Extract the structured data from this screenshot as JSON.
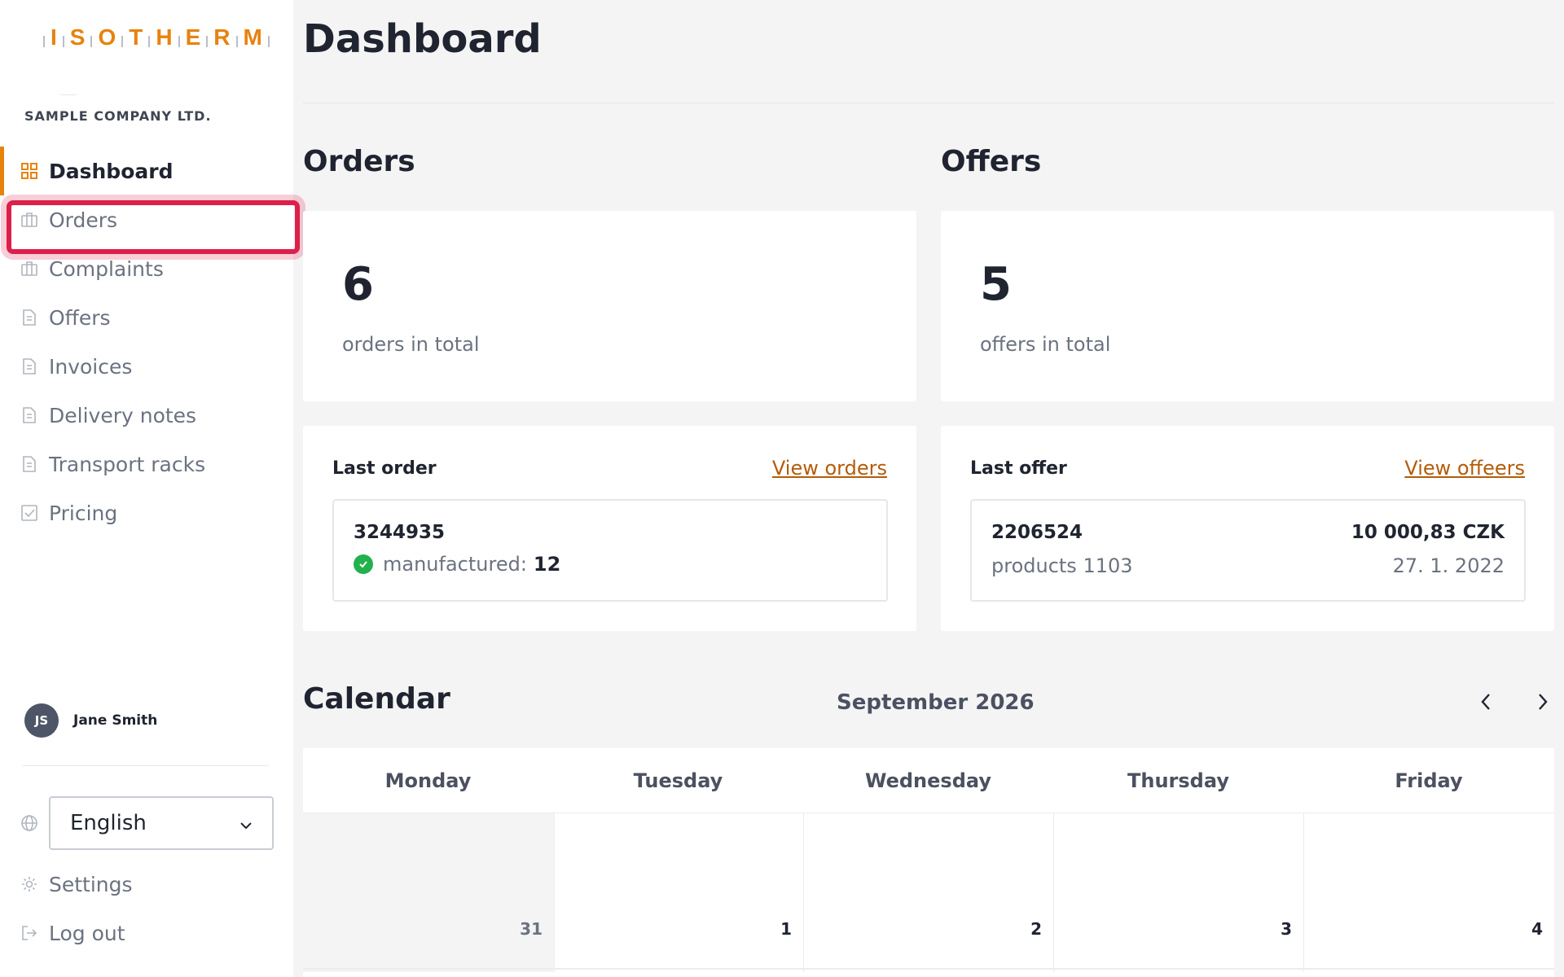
{
  "brand": {
    "logo_letters": [
      "I",
      "S",
      "O",
      "T",
      "H",
      "E",
      "R",
      "M"
    ],
    "accent_color": "#e8820e"
  },
  "sidebar": {
    "company": "SAMPLE COMPANY LTD.",
    "items": [
      {
        "label": "Dashboard",
        "icon": "grid-icon"
      },
      {
        "label": "Orders",
        "icon": "briefcase-icon"
      },
      {
        "label": "Complaints",
        "icon": "briefcase-icon"
      },
      {
        "label": "Offers",
        "icon": "document-icon"
      },
      {
        "label": "Invoices",
        "icon": "document-icon"
      },
      {
        "label": "Delivery notes",
        "icon": "document-icon"
      },
      {
        "label": "Transport racks",
        "icon": "document-icon"
      },
      {
        "label": "Pricing",
        "icon": "checkbox-icon"
      }
    ],
    "user": {
      "initials": "JS",
      "name": "Jane Smith"
    },
    "language": {
      "selected": "English"
    },
    "settings_label": "Settings",
    "logout_label": "Log out"
  },
  "main": {
    "title": "Dashboard",
    "orders": {
      "section_title": "Orders",
      "total": "6",
      "total_label": "orders in total",
      "last_title": "Last order",
      "view_link": "View orders",
      "last": {
        "id": "3244935",
        "status_label": "manufactured:",
        "status_value": "12"
      }
    },
    "offers": {
      "section_title": "Offers",
      "total": "5",
      "total_label": "offers in total",
      "last_title": "Last offer",
      "view_link": "View offeers",
      "last": {
        "id": "2206524",
        "price": "10 000,83 CZK",
        "products": "products 1103",
        "date": "27. 1. 2022"
      }
    },
    "calendar": {
      "title": "Calendar",
      "month": "September 2026",
      "weekdays": [
        "Monday",
        "Tuesday",
        "Wednesday",
        "Thursday",
        "Friday"
      ],
      "days": [
        "31",
        "1",
        "2",
        "3",
        "4"
      ]
    }
  }
}
